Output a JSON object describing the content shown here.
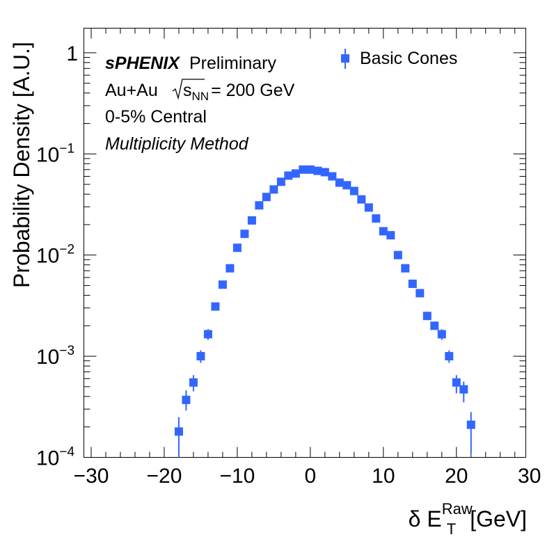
{
  "chart_data": {
    "type": "scatter",
    "x_label": {
      "main": "δ E",
      "sub": "T",
      "sup": "Raw",
      "unit": "[GeV]"
    },
    "y_label": "Probability Density [A.U.]",
    "xlim": [
      -31,
      29.5
    ],
    "ylim": [
      0.0001,
      1.75
    ],
    "y_scale": "log",
    "x_ticks": [
      -30,
      -20,
      -10,
      0,
      10,
      20,
      30
    ],
    "x_tick_labels": [
      "−30",
      "−20",
      "−10",
      "0",
      "10",
      "20",
      "30"
    ],
    "y_ticks": [
      {
        "value": 1,
        "base": "1",
        "exp": ""
      },
      {
        "value": 0.1,
        "base": "10",
        "exp": "−1"
      },
      {
        "value": 0.01,
        "base": "10",
        "exp": "−2"
      },
      {
        "value": 0.001,
        "base": "10",
        "exp": "−3"
      },
      {
        "value": 0.0001,
        "base": "10",
        "exp": "−4"
      }
    ],
    "annotations": {
      "experiment": "sPHENIX",
      "status": "Preliminary",
      "system": "Au+Au",
      "sqrt_s": "s",
      "sqrt_s_sub": "NN",
      "energy": "= 200 GeV",
      "centrality": "0-5% Central",
      "method": "Multiplicity Method"
    },
    "series": [
      {
        "name": "Basic Cones",
        "color": "#3366ff",
        "marker": "square",
        "x": [
          -18,
          -17,
          -16,
          -15,
          -14,
          -13,
          -12,
          -11,
          -10,
          -9,
          -8,
          -7,
          -6,
          -5,
          -4,
          -3,
          -2,
          -1,
          0,
          1,
          2,
          3,
          4,
          5,
          6,
          7,
          8,
          9,
          10,
          11,
          12,
          13,
          14,
          15,
          16,
          17,
          18,
          19,
          20,
          21,
          22
        ],
        "y": [
          0.00018,
          0.00037,
          0.00055,
          0.001,
          0.00165,
          0.0031,
          0.0051,
          0.0074,
          0.0118,
          0.0162,
          0.022,
          0.031,
          0.0375,
          0.0445,
          0.053,
          0.061,
          0.064,
          0.07,
          0.07,
          0.068,
          0.066,
          0.06,
          0.052,
          0.049,
          0.043,
          0.0355,
          0.0295,
          0.023,
          0.0172,
          0.0157,
          0.01,
          0.0074,
          0.0052,
          0.0042,
          0.0025,
          0.002,
          0.00165,
          0.001,
          0.00055,
          0.00047,
          0.00021
        ],
        "err_lo": [
          0.00018,
          8e-05,
          0.0001,
          0.00014,
          0.0002,
          0,
          0,
          0,
          0,
          0,
          0,
          0,
          0,
          0,
          0,
          0,
          0,
          0,
          0,
          0,
          0,
          0,
          0,
          0,
          0,
          0,
          0,
          0,
          0,
          0,
          0,
          0,
          0,
          0,
          0,
          0,
          0.0002,
          0.00014,
          0.00012,
          0.00012,
          0.0001
        ],
        "err_hi": [
          7e-05,
          9e-05,
          0.0001,
          0.00014,
          0.0002,
          0,
          0,
          0,
          0,
          0,
          0,
          0,
          0,
          0,
          0,
          0,
          0,
          0,
          0,
          0,
          0,
          0,
          0,
          0,
          0,
          0,
          0,
          0,
          0,
          0,
          0,
          0,
          0,
          0,
          0,
          0,
          0.0002,
          0.00014,
          0.0001,
          9e-05,
          7e-05
        ]
      }
    ],
    "legend_position": "top-right"
  }
}
